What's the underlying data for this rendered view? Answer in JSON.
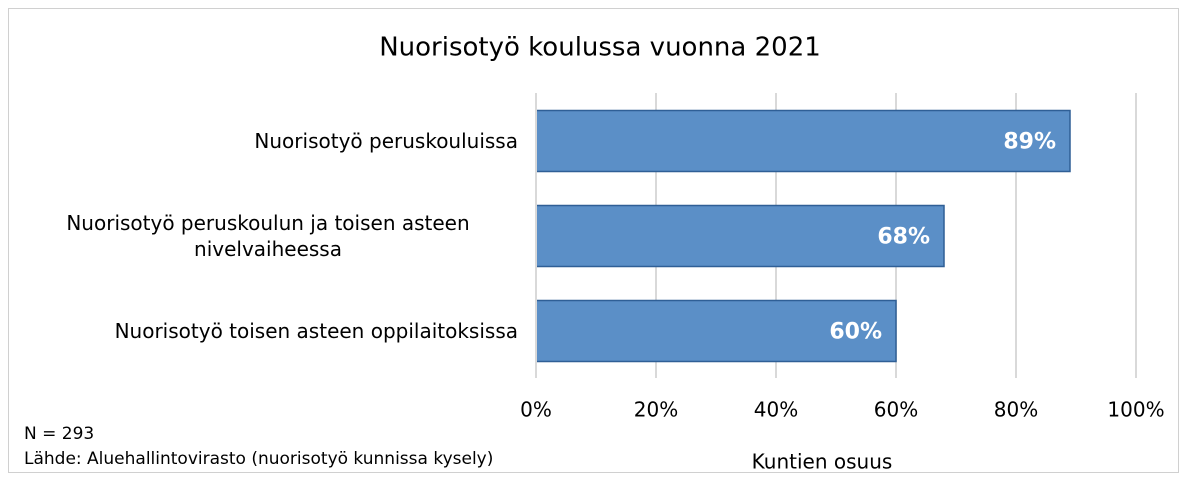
{
  "chart_data": {
    "type": "bar",
    "orientation": "horizontal",
    "title": "Nuorisotyö koulussa vuonna 2021",
    "categories": [
      "Nuorisotyö peruskouluissa",
      "Nuorisotyö peruskoulun ja toisen asteen nivelvaiheessa",
      "Nuorisotyö toisen asteen oppilaitoksissa"
    ],
    "values": [
      89,
      68,
      60
    ],
    "value_labels": [
      "89%",
      "68%",
      "60%"
    ],
    "color": "#5b8fc7",
    "xlim": [
      0,
      100
    ],
    "xticks": [
      {
        "value": 0,
        "label": "0%"
      },
      {
        "value": 20,
        "label": "20%"
      },
      {
        "value": 40,
        "label": "40%"
      },
      {
        "value": 60,
        "label": "60%"
      },
      {
        "value": 80,
        "label": "80%"
      },
      {
        "value": 100,
        "label": "100%"
      }
    ],
    "xlabel": "Kuntien osuus",
    "grid": true,
    "notes": [
      "N = 293",
      "Lähde: Aluehallintovirasto (nuorisotyö kunnissa kysely)"
    ]
  }
}
